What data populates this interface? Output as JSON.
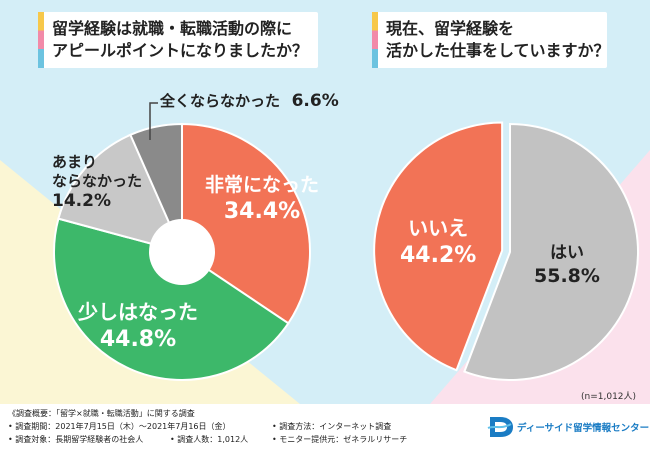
{
  "questions": {
    "q1": {
      "line1": "留学経験は就職・転職活動の際に",
      "line2": "アピールポイントになりましたか？"
    },
    "q2": {
      "line1": "現在、留学経験を",
      "line2": "活かした仕事をしていますか？"
    }
  },
  "chart_data": [
    {
      "type": "pie",
      "variant": "donut",
      "title": "留学経験は就職・転職活動の際にアピールポイントになりましたか？",
      "slices": [
        {
          "key": "very",
          "label": "非常になった",
          "value": 34.4,
          "pct_text": "34.4%",
          "color": "#f27356"
        },
        {
          "key": "some",
          "label": "少しはなった",
          "value": 44.8,
          "pct_text": "44.8%",
          "color": "#3db86a"
        },
        {
          "key": "little",
          "label": "あまり\nならなかった",
          "value": 14.2,
          "pct_text": "14.2%",
          "color": "#c8c8c8"
        },
        {
          "key": "none",
          "label": "全くならなかった",
          "value": 6.6,
          "pct_text": "6.6%",
          "color": "#8a8a8a"
        }
      ]
    },
    {
      "type": "pie",
      "title": "現在、留学経験を活かした仕事をしていますか？",
      "slices": [
        {
          "key": "yes",
          "label": "はい",
          "value": 55.8,
          "pct_text": "55.8%",
          "color": "#c2c2c2"
        },
        {
          "key": "no",
          "label": "いいえ",
          "value": 44.2,
          "pct_text": "44.2%",
          "color": "#f27356"
        }
      ]
    }
  ],
  "note": "(n=1,012人)",
  "footer": {
    "title": "《調査概要：「留学×就職・転職活動」に関する調査",
    "period": "• 調査期間：2021年7月15日（木）～2021年7月16日（金）",
    "target": "• 調査対象：長期留学経験者の社会人",
    "count": "• 調査人数：1,012人",
    "method": "• 調査方法：インターネット調査",
    "provider": "• モニター提供元：ゼネラルリサーチ"
  },
  "logo": {
    "text": "ディーサイド留学情報センター",
    "icon": "d-side-logo-icon"
  },
  "colors": {
    "background": "#d4eef7",
    "yellow_band": "#fbf6d4",
    "pink_band": "#fbe1ec",
    "accent_orange": "#f27356",
    "accent_green": "#3db86a",
    "logo_blue": "#1a7cc4"
  }
}
